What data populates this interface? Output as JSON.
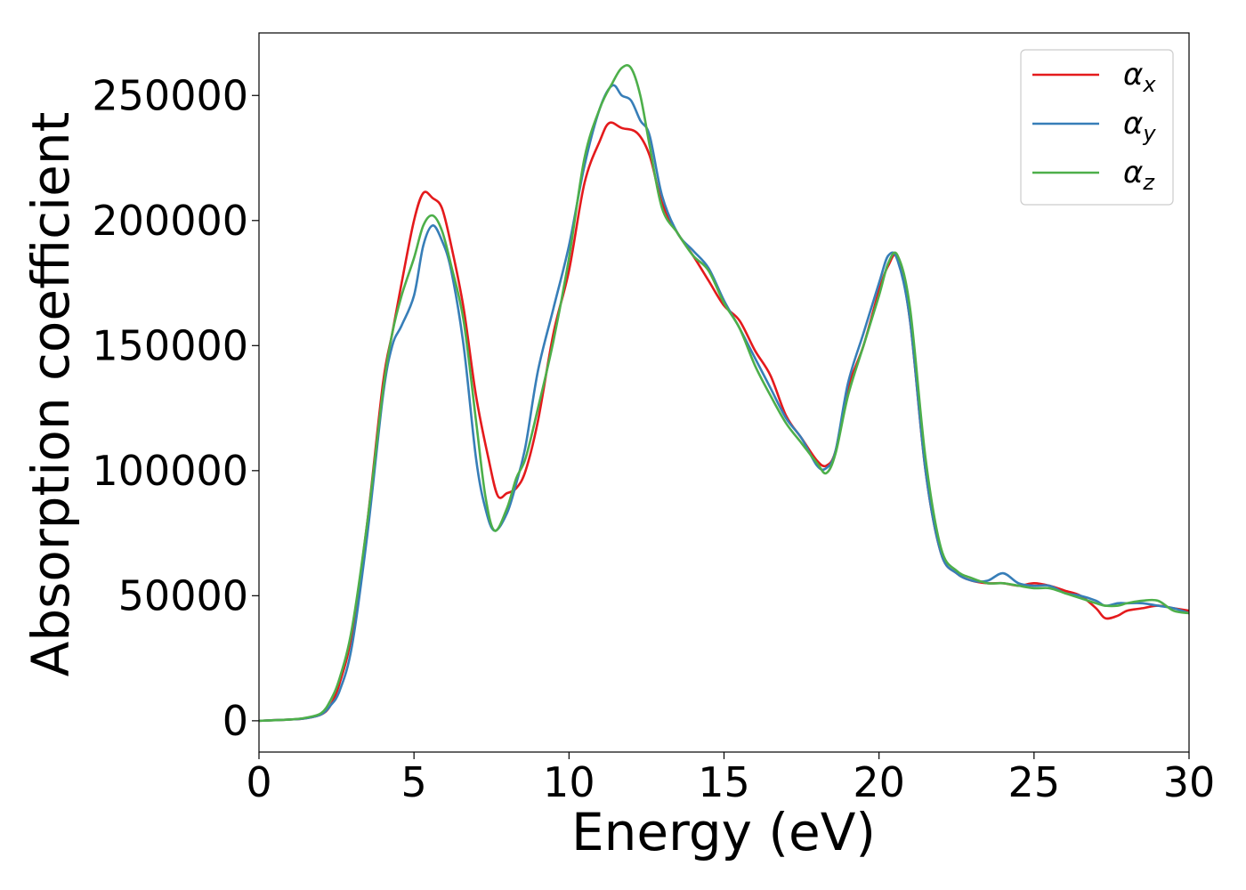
{
  "chart_data": {
    "type": "line",
    "title": "",
    "xlabel": "Energy (eV)",
    "ylabel": "Absorption coefficient",
    "xlim": [
      0,
      30
    ],
    "ylim": [
      -12500,
      275000
    ],
    "xticks": [
      0,
      5,
      10,
      15,
      20,
      25,
      30
    ],
    "xtick_labels": [
      "0",
      "5",
      "10",
      "15",
      "20",
      "25",
      "30"
    ],
    "yticks": [
      0,
      50000,
      100000,
      150000,
      200000,
      250000
    ],
    "ytick_labels": [
      "0",
      "50000",
      "100000",
      "150000",
      "200000",
      "250000"
    ],
    "grid": false,
    "legend_position": "top-right",
    "series": [
      {
        "name": "α",
        "subscript": "x",
        "color": "#e41a1c",
        "x": [
          0,
          1,
          1.5,
          2,
          2.3,
          2.6,
          3,
          3.5,
          4,
          4.3,
          4.6,
          5.0,
          5.3,
          5.6,
          5.9,
          6.2,
          6.6,
          7.0,
          7.4,
          7.7,
          8.0,
          8.3,
          8.6,
          9.0,
          9.5,
          10.0,
          10.5,
          11.0,
          11.3,
          11.7,
          12.2,
          12.6,
          13.0,
          13.5,
          14.0,
          14.5,
          15.0,
          15.5,
          16.0,
          16.5,
          17.0,
          17.5,
          18.0,
          18.3,
          18.6,
          19.0,
          19.5,
          20.0,
          20.3,
          20.6,
          21.0,
          21.5,
          22.0,
          22.5,
          23.0,
          23.5,
          24.0,
          24.5,
          25.0,
          25.5,
          26.0,
          26.5,
          27.0,
          27.3,
          27.7,
          28.0,
          28.5,
          29.0,
          29.5,
          30.0
        ],
        "y": [
          0,
          500,
          1000,
          2500,
          6000,
          15000,
          35000,
          80000,
          135000,
          155000,
          175000,
          200000,
          211000,
          209000,
          205000,
          190000,
          165000,
          130000,
          105000,
          90000,
          91000,
          93000,
          100000,
          120000,
          155000,
          180000,
          215000,
          232000,
          239000,
          237000,
          235000,
          226000,
          207000,
          195000,
          186000,
          176000,
          166000,
          160000,
          148000,
          138000,
          122000,
          113000,
          104000,
          102000,
          108000,
          133000,
          150000,
          172000,
          182000,
          185000,
          160000,
          100000,
          67000,
          59000,
          56000,
          55000,
          55000,
          54000,
          55000,
          54000,
          52000,
          50000,
          45000,
          41000,
          42000,
          44000,
          45000,
          46000,
          45000,
          44000
        ]
      },
      {
        "name": "α",
        "subscript": "y",
        "color": "#377eb8",
        "x": [
          0,
          1,
          1.5,
          2,
          2.3,
          2.6,
          3,
          3.5,
          4,
          4.3,
          4.6,
          5.0,
          5.3,
          5.6,
          5.9,
          6.2,
          6.6,
          7.0,
          7.3,
          7.6,
          8.0,
          8.3,
          8.6,
          9.0,
          9.5,
          10.0,
          10.5,
          11.0,
          11.4,
          11.7,
          12.0,
          12.3,
          12.6,
          13.0,
          13.5,
          14.0,
          14.5,
          15.0,
          15.5,
          16.0,
          16.5,
          17.0,
          17.5,
          18.0,
          18.3,
          18.6,
          19.0,
          19.5,
          20.0,
          20.3,
          20.6,
          21.0,
          21.5,
          22.0,
          22.5,
          23.0,
          23.5,
          24.0,
          24.5,
          25.0,
          25.5,
          26.0,
          26.5,
          27.0,
          27.3,
          27.7,
          28.0,
          28.5,
          29.0,
          29.5,
          30.0
        ],
        "y": [
          0,
          500,
          1000,
          2500,
          6000,
          12000,
          30000,
          75000,
          130000,
          150000,
          158000,
          170000,
          190000,
          198000,
          192000,
          180000,
          150000,
          105000,
          85000,
          76000,
          83000,
          95000,
          110000,
          140000,
          165000,
          190000,
          222000,
          245000,
          254000,
          250000,
          248000,
          240000,
          234000,
          210000,
          195000,
          188000,
          181000,
          168000,
          157000,
          145000,
          133000,
          121000,
          113000,
          102000,
          101000,
          108000,
          135000,
          155000,
          175000,
          186000,
          184000,
          160000,
          100000,
          67000,
          59000,
          56000,
          56000,
          59000,
          55000,
          54000,
          54000,
          51000,
          50000,
          48000,
          46000,
          47000,
          47000,
          47000,
          46000,
          45000,
          43000
        ]
      },
      {
        "name": "α",
        "subscript": "z",
        "color": "#4daf4a",
        "x": [
          0,
          1,
          1.5,
          2,
          2.3,
          2.6,
          3,
          3.5,
          4,
          4.3,
          4.6,
          5.0,
          5.3,
          5.6,
          5.9,
          6.2,
          6.6,
          7.0,
          7.3,
          7.6,
          8.0,
          8.3,
          8.6,
          9.0,
          9.5,
          10.0,
          10.5,
          11.0,
          11.4,
          11.7,
          12.0,
          12.3,
          12.6,
          13.0,
          13.5,
          14.0,
          14.5,
          15.0,
          15.5,
          16.0,
          16.5,
          17.0,
          17.5,
          18.0,
          18.3,
          18.6,
          19.0,
          19.5,
          20.0,
          20.3,
          20.6,
          21.0,
          21.5,
          22.0,
          22.5,
          23.0,
          23.5,
          24.0,
          24.5,
          25.0,
          25.5,
          26.0,
          26.5,
          27.0,
          27.3,
          27.7,
          28.0,
          28.5,
          29.0,
          29.5,
          30.0
        ],
        "y": [
          0,
          500,
          1200,
          3000,
          8000,
          17000,
          37000,
          80000,
          132000,
          155000,
          170000,
          185000,
          198000,
          202000,
          196000,
          182000,
          160000,
          120000,
          90000,
          76000,
          85000,
          97000,
          105000,
          125000,
          152000,
          185000,
          225000,
          245000,
          255000,
          261000,
          261000,
          250000,
          230000,
          205000,
          195000,
          186000,
          180000,
          167000,
          157000,
          142000,
          130000,
          119000,
          111000,
          103000,
          99000,
          107000,
          130000,
          150000,
          170000,
          183000,
          186000,
          165000,
          105000,
          69000,
          60000,
          57000,
          55000,
          55000,
          54000,
          53000,
          53000,
          51000,
          49000,
          47000,
          46000,
          46000,
          47000,
          48000,
          48000,
          44000,
          43000
        ]
      }
    ]
  }
}
